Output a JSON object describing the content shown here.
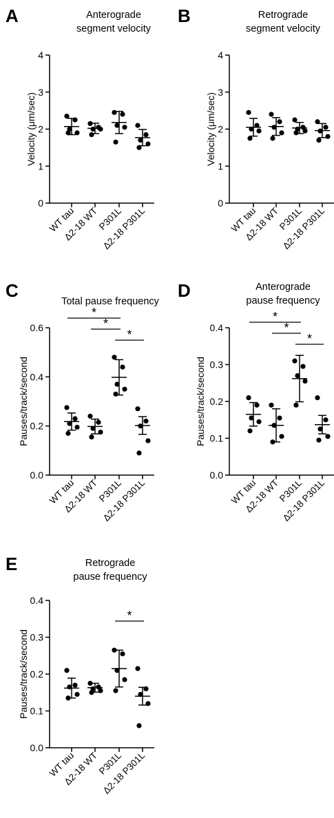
{
  "categories": [
    "WT tau",
    "Δ2-18 WT",
    "P301L",
    "Δ2-18 P301L"
  ],
  "chart_data": [
    {
      "panel": "A",
      "type": "scatter",
      "title_lines": [
        "Anterograde",
        "segment velocity"
      ],
      "ylabel": "Velocity (μm/sec)",
      "ylim": [
        0,
        4
      ],
      "yticks": [
        "0",
        "1",
        "2",
        "3",
        "4"
      ],
      "categories": [
        "WT tau",
        "Δ2-18 WT",
        "P301L",
        "Δ2-18 P301L"
      ],
      "points": [
        [
          2.35,
          2.25,
          2.0,
          1.9,
          1.9
        ],
        [
          2.15,
          2.05,
          2.0,
          2.0,
          1.85
        ],
        [
          2.45,
          2.4,
          2.1,
          2.05,
          1.65
        ],
        [
          2.1,
          1.85,
          1.7,
          1.6,
          1.5
        ]
      ],
      "mean": [
        2.07,
        2.02,
        2.18,
        1.77
      ],
      "err": [
        0.22,
        0.14,
        0.3,
        0.22
      ],
      "brackets": []
    },
    {
      "panel": "B",
      "type": "scatter",
      "title_lines": [
        "Retrograde",
        "segment velocity"
      ],
      "ylabel": "Velocity (μm/sec)",
      "ylim": [
        0,
        4
      ],
      "yticks": [
        "0",
        "1",
        "2",
        "3",
        "4"
      ],
      "categories": [
        "WT tau",
        "Δ2-18 WT",
        "P301L",
        "Δ2-18 P301L"
      ],
      "points": [
        [
          2.45,
          2.1,
          2.0,
          1.95,
          1.75
        ],
        [
          2.4,
          2.2,
          2.05,
          1.9,
          1.75
        ],
        [
          2.25,
          2.05,
          2.0,
          1.95,
          1.9
        ],
        [
          2.2,
          2.05,
          1.95,
          1.8,
          1.7
        ]
      ],
      "mean": [
        2.05,
        2.07,
        2.03,
        1.96
      ],
      "err": [
        0.24,
        0.24,
        0.15,
        0.19
      ],
      "brackets": []
    },
    {
      "panel": "C",
      "type": "scatter",
      "title_lines": [
        "Total pause frequency"
      ],
      "ylabel": "Pauses/track/second",
      "ylim": [
        0,
        0.6
      ],
      "yticks": [
        "0.0",
        "0.2",
        "0.4",
        "0.6"
      ],
      "categories": [
        "WT tau",
        "Δ2-18 WT",
        "P301L",
        "Δ2-18 P301L"
      ],
      "points": [
        [
          0.275,
          0.23,
          0.21,
          0.195,
          0.17
        ],
        [
          0.24,
          0.215,
          0.19,
          0.175,
          0.155
        ],
        [
          0.48,
          0.44,
          0.37,
          0.35,
          0.33
        ],
        [
          0.27,
          0.22,
          0.2,
          0.14,
          0.09
        ]
      ],
      "mean": [
        0.218,
        0.198,
        0.398,
        0.202
      ],
      "err": [
        0.035,
        0.03,
        0.072,
        0.036
      ],
      "brackets": [
        {
          "from": 0,
          "to": 2,
          "label": "*"
        },
        {
          "from": 1,
          "to": 2,
          "label": "*"
        },
        {
          "from": 2,
          "to": 3,
          "label": "*"
        }
      ]
    },
    {
      "panel": "D",
      "type": "scatter",
      "title_lines": [
        "Anterograde",
        "pause frequency"
      ],
      "ylabel": "Pauses/track/second",
      "ylim": [
        0,
        0.4
      ],
      "yticks": [
        "0.0",
        "0.1",
        "0.2",
        "0.3",
        "0.4"
      ],
      "categories": [
        "WT tau",
        "Δ2-18 WT",
        "P301L",
        "Δ2-18 P301L"
      ],
      "points": [
        [
          0.21,
          0.19,
          0.155,
          0.145,
          0.12
        ],
        [
          0.19,
          0.155,
          0.135,
          0.105,
          0.09
        ],
        [
          0.31,
          0.295,
          0.27,
          0.255,
          0.19
        ],
        [
          0.21,
          0.15,
          0.125,
          0.105,
          0.095
        ]
      ],
      "mean": [
        0.165,
        0.135,
        0.262,
        0.137
      ],
      "err": [
        0.032,
        0.045,
        0.063,
        0.025
      ],
      "brackets": [
        {
          "from": 0,
          "to": 2,
          "label": "*"
        },
        {
          "from": 1,
          "to": 2,
          "label": "*"
        },
        {
          "from": 2,
          "to": 3,
          "label": "*"
        }
      ]
    },
    {
      "panel": "E",
      "type": "scatter",
      "title_lines": [
        "Retrograde",
        "pause frequency"
      ],
      "ylabel": "Pauses/track/second",
      "ylim": [
        0,
        0.4
      ],
      "yticks": [
        "0.0",
        "0.1",
        "0.2",
        "0.3",
        "0.4"
      ],
      "categories": [
        "WT tau",
        "Δ2-18 WT",
        "P301L",
        "Δ2-18 P301L"
      ],
      "points": [
        [
          0.21,
          0.17,
          0.165,
          0.145,
          0.135
        ],
        [
          0.175,
          0.165,
          0.16,
          0.155,
          0.15
        ],
        [
          0.265,
          0.255,
          0.21,
          0.185,
          0.155
        ],
        [
          0.215,
          0.16,
          0.145,
          0.12,
          0.06
        ]
      ],
      "mean": [
        0.162,
        0.163,
        0.215,
        0.14
      ],
      "err": [
        0.027,
        0.012,
        0.05,
        0.024
      ],
      "brackets": [
        {
          "from": 2,
          "to": 3,
          "label": "*"
        }
      ]
    }
  ]
}
